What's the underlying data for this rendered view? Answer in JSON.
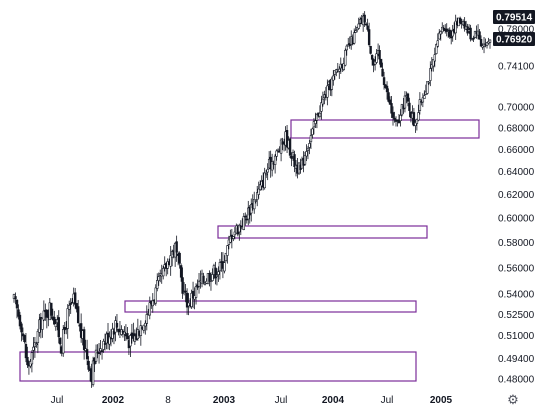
{
  "colors": {
    "candle": "#131722",
    "zone_border": "#7b2d9a",
    "badge_high": "#131722",
    "badge_last": "#131722",
    "axis_text": "#131722"
  },
  "chart_data": {
    "type": "candlestick",
    "title": "",
    "xlabel": "",
    "ylabel": "",
    "y_scale": "log",
    "ylim": [
      0.469,
      0.81
    ],
    "y_ticks": [
      "0.78000",
      "0.74100",
      "0.70000",
      "0.68000",
      "0.66000",
      "0.64000",
      "0.62000",
      "0.60000",
      "0.58000",
      "0.56000",
      "0.54000",
      "0.52500",
      "0.51000",
      "0.49400",
      "0.48000"
    ],
    "x_ticks": [
      {
        "label": "Jul",
        "bold": false
      },
      {
        "label": "2002",
        "bold": true
      },
      {
        "label": "8",
        "bold": false
      },
      {
        "label": "2003",
        "bold": true
      },
      {
        "label": "Jul",
        "bold": false
      },
      {
        "label": "2004",
        "bold": true
      },
      {
        "label": "Jul",
        "bold": false
      },
      {
        "label": "2005",
        "bold": true
      }
    ],
    "price_badges": [
      {
        "label": "0.79514",
        "value": 0.79514
      },
      {
        "label": "0.76920",
        "value": 0.7692
      }
    ],
    "zones": [
      {
        "from": 0.48,
        "to": 0.497
      },
      {
        "from": 0.525,
        "to": 0.532
      },
      {
        "from": 0.584,
        "to": 0.592
      },
      {
        "from": 0.67,
        "to": 0.687
      },
      {
        "from": 0.48,
        "to": 0.497
      }
    ],
    "path_anchors": [
      [
        0,
        0.535
      ],
      [
        5,
        0.518
      ],
      [
        9,
        0.488
      ],
      [
        13,
        0.498
      ],
      [
        18,
        0.52
      ],
      [
        24,
        0.53
      ],
      [
        28,
        0.52
      ],
      [
        32,
        0.503
      ],
      [
        36,
        0.525
      ],
      [
        40,
        0.535
      ],
      [
        44,
        0.515
      ],
      [
        48,
        0.5
      ],
      [
        52,
        0.484
      ],
      [
        56,
        0.5
      ],
      [
        62,
        0.508
      ],
      [
        68,
        0.518
      ],
      [
        74,
        0.512
      ],
      [
        78,
        0.505
      ],
      [
        82,
        0.51
      ],
      [
        86,
        0.52
      ],
      [
        90,
        0.528
      ],
      [
        96,
        0.545
      ],
      [
        100,
        0.555
      ],
      [
        104,
        0.568
      ],
      [
        108,
        0.576
      ],
      [
        111,
        0.558
      ],
      [
        114,
        0.54
      ],
      [
        117,
        0.533
      ],
      [
        120,
        0.54
      ],
      [
        126,
        0.55
      ],
      [
        132,
        0.556
      ],
      [
        138,
        0.56
      ],
      [
        142,
        0.57
      ],
      [
        146,
        0.588
      ],
      [
        150,
        0.592
      ],
      [
        154,
        0.598
      ],
      [
        158,
        0.608
      ],
      [
        162,
        0.618
      ],
      [
        166,
        0.628
      ],
      [
        170,
        0.643
      ],
      [
        174,
        0.652
      ],
      [
        178,
        0.66
      ],
      [
        182,
        0.672
      ],
      [
        185,
        0.66
      ],
      [
        188,
        0.648
      ],
      [
        192,
        0.64
      ],
      [
        196,
        0.662
      ],
      [
        200,
        0.676
      ],
      [
        204,
        0.695
      ],
      [
        208,
        0.71
      ],
      [
        212,
        0.722
      ],
      [
        216,
        0.735
      ],
      [
        220,
        0.745
      ],
      [
        224,
        0.76
      ],
      [
        228,
        0.772
      ],
      [
        232,
        0.786
      ],
      [
        235,
        0.792
      ],
      [
        238,
        0.768
      ],
      [
        241,
        0.742
      ],
      [
        244,
        0.752
      ],
      [
        247,
        0.735
      ],
      [
        250,
        0.712
      ],
      [
        253,
        0.695
      ],
      [
        256,
        0.682
      ],
      [
        259,
        0.69
      ],
      [
        262,
        0.71
      ],
      [
        265,
        0.7
      ],
      [
        268,
        0.685
      ],
      [
        271,
        0.696
      ],
      [
        274,
        0.712
      ],
      [
        277,
        0.725
      ],
      [
        280,
        0.738
      ],
      [
        283,
        0.758
      ],
      [
        286,
        0.778
      ],
      [
        289,
        0.784
      ],
      [
        292,
        0.774
      ],
      [
        295,
        0.782
      ],
      [
        298,
        0.788
      ],
      [
        301,
        0.79
      ],
      [
        304,
        0.778
      ],
      [
        307,
        0.772
      ],
      [
        310,
        0.78
      ],
      [
        313,
        0.765
      ],
      [
        316,
        0.763
      ],
      [
        319,
        0.769
      ]
    ]
  }
}
